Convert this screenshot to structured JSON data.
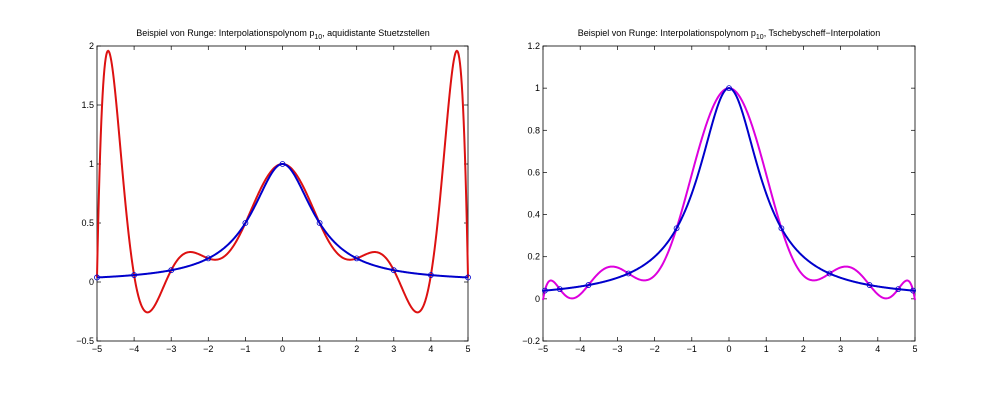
{
  "colors": {
    "runge_function": "#0000cc",
    "equidistant_polynomial": "#dd1111",
    "chebyshev_polynomial": "#dd00dd",
    "nodes": "#0000cc"
  },
  "chart_data": [
    {
      "type": "line",
      "title": {
        "prefix": "Beispiel von Runge: Interpolationspolynom p",
        "subscript": "10",
        "suffix": ", aquidistante Stuetzstellen"
      },
      "xlabel": "",
      "ylabel": "",
      "xlim": [
        -5,
        5
      ],
      "ylim": [
        -0.5,
        2
      ],
      "xticks": [
        "-5",
        "-4",
        "-3",
        "-2",
        "-1",
        "0",
        "1",
        "2",
        "3",
        "4",
        "5"
      ],
      "yticks": [
        "-0.5",
        "0",
        "0.5",
        "1",
        "1.5",
        "2"
      ],
      "grid": false,
      "function": "1/(1+x^2)",
      "nodes": [
        {
          "x": -5,
          "y": 0.0385
        },
        {
          "x": -4,
          "y": 0.0588
        },
        {
          "x": -3,
          "y": 0.1
        },
        {
          "x": -2,
          "y": 0.2
        },
        {
          "x": -1,
          "y": 0.5
        },
        {
          "x": 0,
          "y": 1
        },
        {
          "x": 1,
          "y": 0.5
        },
        {
          "x": 2,
          "y": 0.2
        },
        {
          "x": 3,
          "y": 0.1
        },
        {
          "x": 4,
          "y": 0.0588
        },
        {
          "x": 5,
          "y": 0.0385
        }
      ],
      "series": [
        {
          "color_key": "runge_function",
          "kind": "function"
        },
        {
          "color_key": "equidistant_polynomial",
          "kind": "interpolant"
        }
      ]
    },
    {
      "type": "line",
      "title": {
        "prefix": "Beispiel von Runge: Interpolationspolynom p",
        "subscript": "10",
        "suffix": ", Tschebyscheff−Interpolation"
      },
      "xlabel": "",
      "ylabel": "",
      "xlim": [
        -5,
        5
      ],
      "ylim": [
        -0.2,
        1.2
      ],
      "xticks": [
        "-5",
        "-4",
        "-3",
        "-2",
        "-1",
        "0",
        "1",
        "2",
        "3",
        "4",
        "5"
      ],
      "yticks": [
        "-0.2",
        "0",
        "0.2",
        "0.4",
        "0.6",
        "0.8",
        "1",
        "1.2"
      ],
      "grid": false,
      "function": "1/(1+x^2)",
      "nodes": [
        {
          "x": -4.949,
          "y": 0.0392
        },
        {
          "x": -4.5482,
          "y": 0.0461
        },
        {
          "x": -3.7787,
          "y": 0.0655
        },
        {
          "x": -2.7032,
          "y": 0.1204
        },
        {
          "x": -1.4087,
          "y": 0.3351
        },
        {
          "x": 0,
          "y": 1
        },
        {
          "x": 1.4087,
          "y": 0.3351
        },
        {
          "x": 2.7032,
          "y": 0.1204
        },
        {
          "x": 3.7787,
          "y": 0.0655
        },
        {
          "x": 4.5482,
          "y": 0.0461
        },
        {
          "x": 4.949,
          "y": 0.0392
        }
      ],
      "series": [
        {
          "color_key": "runge_function",
          "kind": "function"
        },
        {
          "color_key": "chebyshev_polynomial",
          "kind": "interpolant"
        }
      ]
    }
  ]
}
